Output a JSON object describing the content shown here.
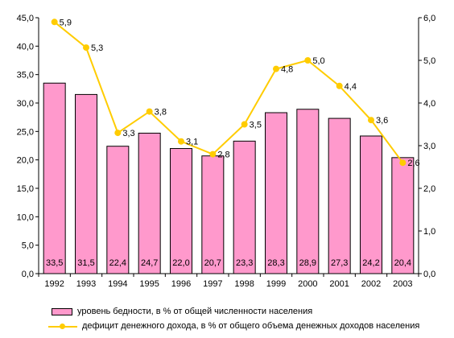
{
  "chart_data": {
    "type": "bar",
    "categories": [
      "1992",
      "1993",
      "1994",
      "1995",
      "1996",
      "1997",
      "1998",
      "1999",
      "2000",
      "2001",
      "2002",
      "2003"
    ],
    "series": [
      {
        "name": "уровень бедности, в % от общей численности населения",
        "type": "bar",
        "axis": "left",
        "color": "#ff99cc",
        "values": [
          33.5,
          31.5,
          22.4,
          24.7,
          22.0,
          20.7,
          23.3,
          28.3,
          28.9,
          27.3,
          24.2,
          20.4
        ],
        "labels": [
          "33,5",
          "31,5",
          "22,4",
          "24,7",
          "22,0",
          "20,7",
          "23,3",
          "28,3",
          "28,9",
          "27,3",
          "24,2",
          "20,4"
        ]
      },
      {
        "name": "дефицит денежного дохода, в % от общего объема денежных доходов населения",
        "type": "line",
        "axis": "right",
        "color": "#ffcc00",
        "values": [
          5.9,
          5.3,
          3.3,
          3.8,
          3.1,
          2.8,
          3.5,
          4.8,
          5.0,
          4.4,
          3.6,
          2.6
        ],
        "labels": [
          "5,9",
          "5,3",
          "3,3",
          "3,8",
          "3,1",
          "2,8",
          "3,5",
          "4,8",
          "5,0",
          "4,4",
          "3,6",
          "2,6"
        ]
      }
    ],
    "y_left": {
      "ylim": [
        0,
        45
      ],
      "ticks": [
        "0,0",
        "5,0",
        "10,0",
        "15,0",
        "20,0",
        "25,0",
        "30,0",
        "35,0",
        "40,0",
        "45,0"
      ]
    },
    "y_right": {
      "ylim": [
        0,
        6
      ],
      "ticks": [
        "0,0",
        "1,0",
        "2,0",
        "3,0",
        "4,0",
        "5,0",
        "6,0"
      ]
    },
    "grid": false,
    "legend_position": "bottom"
  }
}
